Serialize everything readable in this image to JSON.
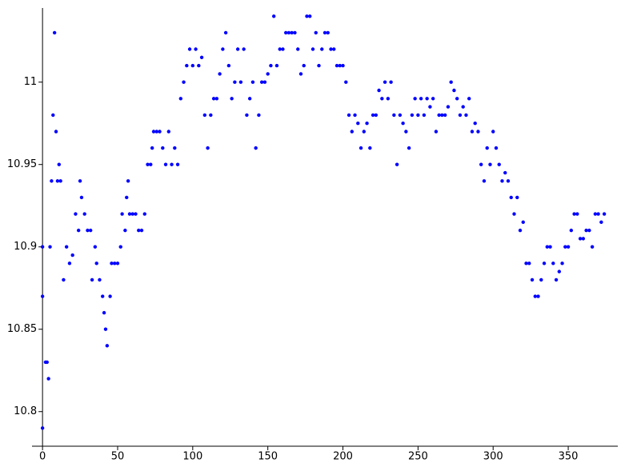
{
  "chart_data": {
    "type": "scatter",
    "color": "#0000ff",
    "xlim": [
      -7,
      383
    ],
    "ylim": [
      10.779,
      11.045
    ],
    "xticks": [
      0,
      50,
      100,
      150,
      200,
      250,
      300,
      350
    ],
    "yticks": [
      10.8,
      10.85,
      10.9,
      10.95,
      11
    ],
    "x": [
      0,
      0,
      0,
      2,
      3,
      4,
      5,
      6,
      7,
      8,
      9,
      10,
      11,
      12,
      14,
      16,
      18,
      20,
      22,
      24,
      25,
      26,
      28,
      30,
      32,
      33,
      35,
      36,
      38,
      40,
      41,
      42,
      43,
      45,
      46,
      48,
      50,
      52,
      53,
      55,
      56,
      57,
      58,
      60,
      62,
      64,
      66,
      68,
      70,
      72,
      73,
      74,
      76,
      78,
      80,
      82,
      84,
      86,
      88,
      90,
      92,
      94,
      96,
      98,
      100,
      102,
      104,
      106,
      108,
      110,
      112,
      114,
      116,
      118,
      120,
      122,
      124,
      126,
      128,
      130,
      132,
      134,
      136,
      138,
      140,
      142,
      144,
      146,
      148,
      150,
      152,
      154,
      156,
      158,
      160,
      162,
      164,
      166,
      168,
      170,
      172,
      174,
      176,
      178,
      180,
      182,
      184,
      186,
      188,
      190,
      192,
      194,
      196,
      198,
      200,
      202,
      204,
      206,
      208,
      210,
      212,
      214,
      216,
      218,
      220,
      222,
      224,
      226,
      228,
      230,
      232,
      234,
      236,
      238,
      240,
      242,
      244,
      246,
      248,
      250,
      252,
      254,
      256,
      258,
      260,
      262,
      264,
      266,
      268,
      270,
      272,
      274,
      276,
      278,
      280,
      282,
      284,
      286,
      288,
      290,
      292,
      294,
      296,
      298,
      300,
      302,
      304,
      306,
      308,
      310,
      312,
      314,
      316,
      318,
      320,
      322,
      324,
      326,
      328,
      330,
      332,
      334,
      336,
      338,
      340,
      342,
      344,
      346,
      348,
      350,
      352,
      354,
      356,
      358,
      360,
      362,
      364,
      366,
      368,
      370,
      372,
      374
    ],
    "y": [
      10.79,
      10.87,
      10.9,
      10.83,
      10.83,
      10.82,
      10.9,
      10.94,
      10.98,
      11.03,
      10.97,
      10.94,
      10.95,
      10.94,
      10.88,
      10.9,
      10.89,
      10.895,
      10.92,
      10.91,
      10.94,
      10.93,
      10.92,
      10.91,
      10.91,
      10.88,
      10.9,
      10.89,
      10.88,
      10.87,
      10.86,
      10.85,
      10.84,
      10.87,
      10.89,
      10.89,
      10.89,
      10.9,
      10.92,
      10.91,
      10.93,
      10.94,
      10.92,
      10.92,
      10.92,
      10.91,
      10.91,
      10.92,
      10.95,
      10.95,
      10.96,
      10.97,
      10.97,
      10.97,
      10.96,
      10.95,
      10.97,
      10.95,
      10.96,
      10.95,
      10.99,
      11.0,
      11.01,
      11.02,
      11.01,
      11.02,
      11.01,
      11.015,
      10.98,
      10.96,
      10.98,
      10.99,
      10.99,
      11.005,
      11.02,
      11.03,
      11.01,
      10.99,
      11.0,
      11.02,
      11.0,
      11.02,
      10.98,
      10.99,
      11.0,
      10.96,
      10.98,
      11.0,
      11.0,
      11.005,
      11.01,
      11.04,
      11.01,
      11.02,
      11.02,
      11.03,
      11.03,
      11.03,
      11.03,
      11.02,
      11.005,
      11.01,
      11.04,
      11.04,
      11.02,
      11.03,
      11.01,
      11.02,
      11.03,
      11.03,
      11.02,
      11.02,
      11.01,
      11.01,
      11.01,
      11.0,
      10.98,
      10.97,
      10.98,
      10.975,
      10.96,
      10.97,
      10.975,
      10.96,
      10.98,
      10.98,
      10.995,
      10.99,
      11.0,
      10.99,
      11.0,
      10.98,
      10.95,
      10.98,
      10.975,
      10.97,
      10.96,
      10.98,
      10.99,
      10.98,
      10.99,
      10.98,
      10.99,
      10.985,
      10.99,
      10.97,
      10.98,
      10.98,
      10.98,
      10.985,
      11.0,
      10.995,
      10.99,
      10.98,
      10.985,
      10.98,
      10.99,
      10.97,
      10.975,
      10.97,
      10.95,
      10.94,
      10.96,
      10.95,
      10.97,
      10.96,
      10.95,
      10.94,
      10.945,
      10.94,
      10.93,
      10.92,
      10.93,
      10.91,
      10.915,
      10.89,
      10.89,
      10.88,
      10.87,
      10.87,
      10.88,
      10.89,
      10.9,
      10.9,
      10.89,
      10.88,
      10.885,
      10.89,
      10.9,
      10.9,
      10.91,
      10.92,
      10.92,
      10.905,
      10.905,
      10.91,
      10.91,
      10.9,
      10.92,
      10.92,
      10.915,
      10.92
    ]
  }
}
